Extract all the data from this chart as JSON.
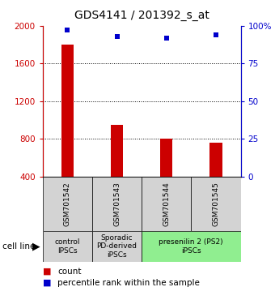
{
  "title": "GDS4141 / 201392_s_at",
  "samples": [
    "GSM701542",
    "GSM701543",
    "GSM701544",
    "GSM701545"
  ],
  "counts": [
    1800,
    950,
    800,
    760
  ],
  "percentiles": [
    97,
    93,
    92,
    94
  ],
  "ylim_left": [
    400,
    2000
  ],
  "ylim_right": [
    0,
    100
  ],
  "yticks_left": [
    400,
    800,
    1200,
    1600,
    2000
  ],
  "yticks_right": [
    0,
    25,
    50,
    75,
    100
  ],
  "ytick_labels_right": [
    "0",
    "25",
    "50",
    "75",
    "100%"
  ],
  "bar_color": "#cc0000",
  "dot_color": "#0000cc",
  "groups": [
    {
      "label": "control\nIPSCs",
      "start": 0,
      "end": 1,
      "color": "#d3d3d3"
    },
    {
      "label": "Sporadic\nPD-derived\niPSCs",
      "start": 1,
      "end": 2,
      "color": "#d3d3d3"
    },
    {
      "label": "presenilin 2 (PS2)\niPSCs",
      "start": 2,
      "end": 4,
      "color": "#90ee90"
    }
  ],
  "cell_line_label": "cell line",
  "legend_count_label": "count",
  "legend_pct_label": "percentile rank within the sample",
  "title_fontsize": 10,
  "tick_fontsize": 7.5,
  "sample_label_fontsize": 6.5,
  "group_label_fontsize": 6.5,
  "legend_fontsize": 7.5,
  "cell_line_fontsize": 7.5,
  "bar_width": 0.25,
  "grid_yticks": [
    800,
    1200,
    1600
  ],
  "dot_size": 5
}
